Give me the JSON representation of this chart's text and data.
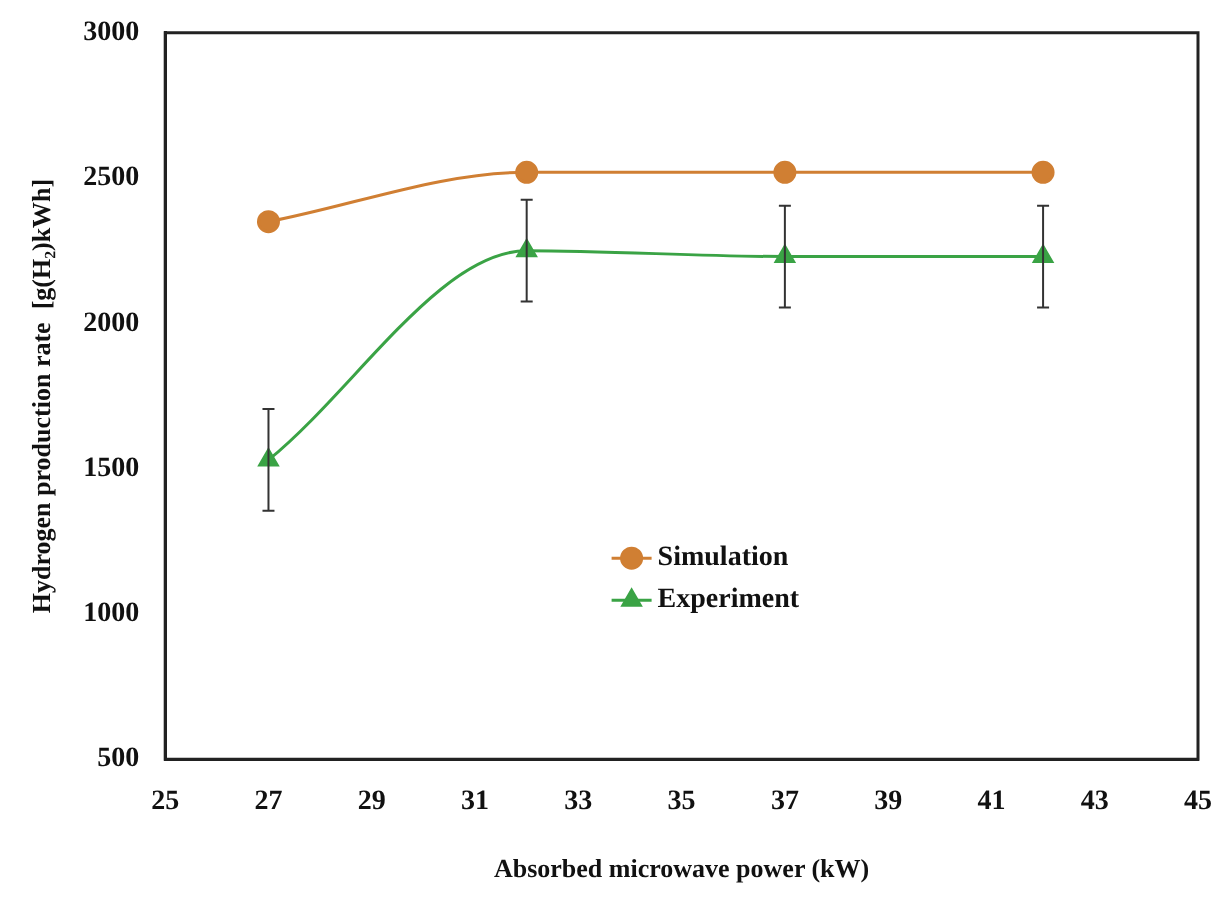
{
  "chart_data": {
    "type": "line",
    "xlabel": "Absorbed microwave power (kW)",
    "ylabel": "Hydrogen production rate  [g(H₂)kWh]",
    "x": [
      27,
      32,
      37,
      42
    ],
    "series": [
      {
        "name": "Simulation",
        "color": "#d07f33",
        "values": [
          2350,
          2520,
          2520,
          2520
        ],
        "marker": "circle"
      },
      {
        "name": "Experiment",
        "color": "#3aa345",
        "values": [
          1530,
          2250,
          2230,
          2230
        ],
        "marker": "triangle",
        "errors": [
          175,
          175,
          175,
          175
        ]
      }
    ],
    "xlim": [
      25,
      45
    ],
    "xticks": [
      25,
      27,
      29,
      31,
      33,
      35,
      37,
      39,
      41,
      43,
      45
    ],
    "ylim": [
      500,
      3000
    ],
    "yticks": [
      500,
      1000,
      1500,
      2000,
      2500,
      3000
    ],
    "grid": false,
    "legend": "bottom"
  }
}
